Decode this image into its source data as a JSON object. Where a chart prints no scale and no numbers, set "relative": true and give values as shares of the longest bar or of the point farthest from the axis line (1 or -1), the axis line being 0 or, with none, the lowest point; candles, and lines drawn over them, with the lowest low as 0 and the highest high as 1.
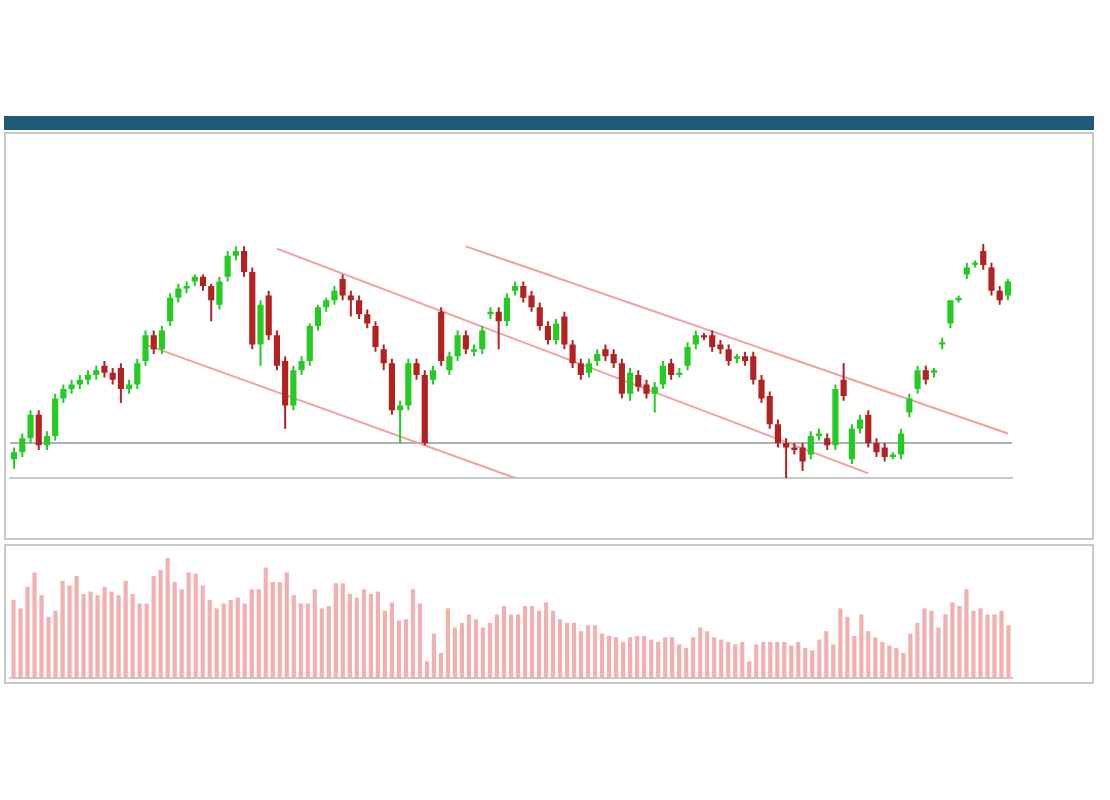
{
  "chart_data": [
    {
      "type": "candlestick",
      "relative": true,
      "grid": false,
      "legend": false,
      "categories": [
        null,
        null,
        null,
        null,
        null,
        null,
        null,
        null,
        null,
        null,
        null,
        null,
        null,
        null,
        null,
        null,
        null,
        null,
        null,
        null,
        null,
        null,
        null,
        null,
        null,
        null,
        null,
        null,
        null,
        null,
        null,
        null,
        null,
        null,
        null,
        null,
        null,
        null,
        null,
        null,
        null,
        null,
        null,
        null,
        null,
        null,
        null,
        null,
        null,
        null,
        null,
        null,
        null,
        null,
        null,
        null,
        null,
        null,
        null,
        null,
        null,
        null,
        null,
        null,
        null,
        null,
        null,
        null,
        null,
        null,
        null,
        null,
        null,
        null,
        null,
        null,
        null,
        null,
        null,
        null,
        null,
        null,
        null,
        null,
        null,
        null,
        null,
        null,
        null,
        null,
        null,
        null,
        null,
        null,
        null,
        null,
        null,
        null,
        null,
        null,
        null,
        null,
        null,
        null,
        null,
        null,
        null,
        null,
        null,
        null,
        null,
        null,
        null,
        null,
        null,
        null,
        null,
        null,
        null,
        null,
        null,
        null
      ],
      "ohlc": [
        [
          0.08,
          0.13,
          0.04,
          0.11
        ],
        [
          0.11,
          0.19,
          0.09,
          0.17
        ],
        [
          0.17,
          0.29,
          0.15,
          0.27
        ],
        [
          0.27,
          0.29,
          0.12,
          0.14
        ],
        [
          0.14,
          0.2,
          0.12,
          0.18
        ],
        [
          0.18,
          0.36,
          0.16,
          0.34
        ],
        [
          0.34,
          0.4,
          0.32,
          0.38
        ],
        [
          0.38,
          0.42,
          0.36,
          0.4
        ],
        [
          0.4,
          0.44,
          0.38,
          0.42
        ],
        [
          0.42,
          0.46,
          0.4,
          0.44
        ],
        [
          0.44,
          0.48,
          0.42,
          0.46
        ],
        [
          0.48,
          0.5,
          0.43,
          0.45
        ],
        [
          0.45,
          0.47,
          0.4,
          0.42
        ],
        [
          0.47,
          0.49,
          0.32,
          0.38
        ],
        [
          0.38,
          0.42,
          0.36,
          0.4
        ],
        [
          0.4,
          0.51,
          0.38,
          0.49
        ],
        [
          0.5,
          0.63,
          0.48,
          0.61
        ],
        [
          0.61,
          0.63,
          0.53,
          0.55
        ],
        [
          0.55,
          0.65,
          0.53,
          0.63
        ],
        [
          0.67,
          0.79,
          0.65,
          0.77
        ],
        [
          0.77,
          0.83,
          0.75,
          0.81
        ],
        [
          0.81,
          0.84,
          0.79,
          0.82
        ],
        [
          0.84,
          0.87,
          0.82,
          0.86
        ],
        [
          0.86,
          0.87,
          0.8,
          0.82
        ],
        [
          0.82,
          0.83,
          0.67,
          0.76
        ],
        [
          0.74,
          0.86,
          0.72,
          0.84
        ],
        [
          0.86,
          0.97,
          0.84,
          0.95
        ],
        [
          0.95,
          0.99,
          0.93,
          0.97
        ],
        [
          0.97,
          0.99,
          0.86,
          0.88
        ],
        [
          0.88,
          0.9,
          0.55,
          0.57
        ],
        [
          0.57,
          0.76,
          0.48,
          0.74
        ],
        [
          0.78,
          0.8,
          0.59,
          0.61
        ],
        [
          0.61,
          0.63,
          0.46,
          0.48
        ],
        [
          0.5,
          0.52,
          0.21,
          0.31
        ],
        [
          0.31,
          0.48,
          0.29,
          0.46
        ],
        [
          0.46,
          0.52,
          0.44,
          0.5
        ],
        [
          0.5,
          0.66,
          0.48,
          0.65
        ],
        [
          0.65,
          0.74,
          0.63,
          0.73
        ],
        [
          0.73,
          0.77,
          0.71,
          0.76
        ],
        [
          0.76,
          0.82,
          0.74,
          0.8
        ],
        [
          0.85,
          0.87,
          0.76,
          0.78
        ],
        [
          0.78,
          0.8,
          0.69,
          0.76
        ],
        [
          0.76,
          0.78,
          0.68,
          0.7
        ],
        [
          0.7,
          0.72,
          0.64,
          0.66
        ],
        [
          0.65,
          0.67,
          0.54,
          0.56
        ],
        [
          0.55,
          0.57,
          0.46,
          0.49
        ],
        [
          0.49,
          0.51,
          0.27,
          0.29
        ],
        [
          0.29,
          0.33,
          0.15,
          0.31
        ],
        [
          0.31,
          0.51,
          0.29,
          0.49
        ],
        [
          0.49,
          0.51,
          0.42,
          0.44
        ],
        [
          0.44,
          0.46,
          0.14,
          0.15
        ],
        [
          0.42,
          0.48,
          0.4,
          0.46
        ],
        [
          0.71,
          0.73,
          0.48,
          0.5
        ],
        [
          0.46,
          0.54,
          0.44,
          0.52
        ],
        [
          0.52,
          0.63,
          0.5,
          0.61
        ],
        [
          0.61,
          0.63,
          0.53,
          0.55
        ],
        [
          0.54,
          0.57,
          0.52,
          0.55
        ],
        [
          0.55,
          0.65,
          0.53,
          0.63
        ],
        [
          0.7,
          0.73,
          0.68,
          0.71
        ],
        [
          0.71,
          0.73,
          0.55,
          0.67
        ],
        [
          0.67,
          0.79,
          0.65,
          0.77
        ],
        [
          0.8,
          0.84,
          0.78,
          0.82
        ],
        [
          0.82,
          0.84,
          0.75,
          0.77
        ],
        [
          0.78,
          0.8,
          0.71,
          0.73
        ],
        [
          0.73,
          0.75,
          0.63,
          0.65
        ],
        [
          0.65,
          0.67,
          0.57,
          0.59
        ],
        [
          0.59,
          0.68,
          0.57,
          0.66
        ],
        [
          0.69,
          0.71,
          0.55,
          0.57
        ],
        [
          0.57,
          0.59,
          0.47,
          0.49
        ],
        [
          0.49,
          0.51,
          0.42,
          0.44
        ],
        [
          0.45,
          0.51,
          0.43,
          0.49
        ],
        [
          0.5,
          0.55,
          0.48,
          0.53
        ],
        [
          0.55,
          0.57,
          0.5,
          0.52
        ],
        [
          0.53,
          0.55,
          0.47,
          0.49
        ],
        [
          0.49,
          0.51,
          0.34,
          0.36
        ],
        [
          0.36,
          0.47,
          0.33,
          0.45
        ],
        [
          0.44,
          0.46,
          0.37,
          0.39
        ],
        [
          0.4,
          0.42,
          0.34,
          0.36
        ],
        [
          0.36,
          0.41,
          0.28,
          0.39
        ],
        [
          0.4,
          0.5,
          0.38,
          0.48
        ],
        [
          0.49,
          0.51,
          0.42,
          0.44
        ],
        [
          0.44,
          0.47,
          0.43,
          0.45
        ],
        [
          0.48,
          0.58,
          0.46,
          0.56
        ],
        [
          0.57,
          0.63,
          0.55,
          0.61
        ],
        [
          0.61,
          0.62,
          0.59,
          0.6
        ],
        [
          0.61,
          0.63,
          0.54,
          0.56
        ],
        [
          0.57,
          0.59,
          0.53,
          0.55
        ],
        [
          0.55,
          0.57,
          0.48,
          0.5
        ],
        [
          0.51,
          0.53,
          0.49,
          0.52
        ],
        [
          0.52,
          0.54,
          0.48,
          0.5
        ],
        [
          0.52,
          0.54,
          0.4,
          0.42
        ],
        [
          0.42,
          0.44,
          0.32,
          0.34
        ],
        [
          0.35,
          0.37,
          0.21,
          0.23
        ],
        [
          0.23,
          0.25,
          0.13,
          0.15
        ],
        [
          0.15,
          0.17,
          0,
          0.13
        ],
        [
          0.13,
          0.15,
          0.1,
          0.12
        ],
        [
          0.13,
          0.15,
          0.03,
          0.07
        ],
        [
          0.1,
          0.2,
          0.08,
          0.18
        ],
        [
          0.18,
          0.21,
          0.16,
          0.19
        ],
        [
          0.17,
          0.19,
          0.12,
          0.14
        ],
        [
          0.14,
          0.4,
          0.12,
          0.38
        ],
        [
          0.42,
          0.49,
          0.33,
          0.35
        ],
        [
          0.08,
          0.23,
          0.06,
          0.21
        ],
        [
          0.21,
          0.27,
          0.19,
          0.25
        ],
        [
          0.27,
          0.29,
          0.13,
          0.15
        ],
        [
          0.15,
          0.17,
          0.09,
          0.11
        ],
        [
          0.13,
          0.15,
          0.07,
          0.09
        ],
        [
          0.09,
          0.11,
          0.08,
          0.1
        ],
        [
          0.1,
          0.21,
          0.08,
          0.19
        ],
        [
          0.28,
          0.36,
          0.26,
          0.34
        ],
        [
          0.38,
          0.48,
          0.36,
          0.46
        ],
        [
          0.46,
          0.48,
          0.4,
          0.42
        ],
        [
          0.45,
          0.47,
          0.43,
          0.46
        ],
        [
          0.57,
          0.6,
          0.55,
          0.58
        ],
        [
          0.66,
          0.76,
          0.64,
          0.76
        ],
        [
          0.76,
          0.78,
          0.75,
          0.77
        ],
        [
          0.87,
          0.92,
          0.85,
          0.9
        ],
        [
          0.92,
          0.93,
          0.9,
          0.92
        ],
        [
          0.97,
          1,
          0.89,
          0.91
        ],
        [
          0.9,
          0.92,
          0.78,
          0.8
        ],
        [
          0.8,
          0.82,
          0.74,
          0.76
        ],
        [
          0.78,
          0.85,
          0.76,
          0.84
        ]
      ],
      "colors": [
        "#22cc22",
        "#22cc22",
        "#22cc22",
        "#b22222",
        "#22cc22",
        "#22cc22",
        "#22cc22",
        "#22cc22",
        "#22cc22",
        "#22cc22",
        "#22cc22",
        "#b22222",
        "#b22222",
        "#b22222",
        "#22cc22",
        "#22cc22",
        "#22cc22",
        "#b22222",
        "#22cc22",
        "#22cc22",
        "#22cc22",
        "#22cc22",
        "#22cc22",
        "#b22222",
        "#b22222",
        "#22cc22",
        "#22cc22",
        "#22cc22",
        "#b22222",
        "#b22222",
        "#22cc22",
        "#b22222",
        "#b22222",
        "#b22222",
        "#22cc22",
        "#22cc22",
        "#22cc22",
        "#22cc22",
        "#22cc22",
        "#22cc22",
        "#b22222",
        "#b22222",
        "#b22222",
        "#b22222",
        "#b22222",
        "#b22222",
        "#b22222",
        "#22cc22",
        "#22cc22",
        "#b22222",
        "#b22222",
        "#22cc22",
        "#b22222",
        "#22cc22",
        "#22cc22",
        "#b22222",
        "#22cc22",
        "#22cc22",
        "#22cc22",
        "#b22222",
        "#22cc22",
        "#22cc22",
        "#b22222",
        "#b22222",
        "#b22222",
        "#b22222",
        "#22cc22",
        "#b22222",
        "#b22222",
        "#b22222",
        "#22cc22",
        "#22cc22",
        "#b22222",
        "#b22222",
        "#b22222",
        "#22cc22",
        "#b22222",
        "#b22222",
        "#22cc22",
        "#22cc22",
        "#b22222",
        "#22cc22",
        "#22cc22",
        "#22cc22",
        "#b22222",
        "#b22222",
        "#b22222",
        "#b22222",
        "#22cc22",
        "#b22222",
        "#b22222",
        "#b22222",
        "#b22222",
        "#b22222",
        "#b22222",
        "#b22222",
        "#b22222",
        "#22cc22",
        "#22cc22",
        "#b22222",
        "#22cc22",
        "#b22222",
        "#22cc22",
        "#22cc22",
        "#b22222",
        "#b22222",
        "#b22222",
        "#22cc22",
        "#22cc22",
        "#22cc22",
        "#22cc22",
        "#b22222",
        "#22cc22",
        "#22cc22",
        "#22cc22",
        "#22cc22",
        "#22cc22",
        "#22cc22",
        "#b22222",
        "#b22222",
        "#b22222",
        "#22cc22"
      ],
      "series": [
        {
          "type": "line",
          "color": "#f4a0a0",
          "values": [
            null,
            null,
            null,
            null,
            null,
            null,
            null,
            null,
            null,
            null,
            null,
            null,
            null,
            null,
            null,
            null,
            null,
            null,
            null,
            null,
            null,
            null,
            null,
            null,
            null,
            null,
            null,
            null,
            null,
            null,
            null,
            null,
            null,
            null,
            null,
            null,
            null,
            null,
            null,
            null,
            null,
            null,
            null,
            null,
            null,
            null,
            null,
            null,
            null,
            null,
            null,
            null,
            null,
            null,
            null,
            0.99,
            null,
            null,
            null,
            null,
            null,
            null,
            null,
            null,
            null,
            null,
            null,
            null,
            null,
            null,
            null,
            null,
            null,
            null,
            null,
            null,
            null,
            null,
            null,
            null,
            null,
            null,
            null,
            null,
            null,
            null,
            null,
            null,
            null,
            null,
            null,
            null,
            null,
            null,
            null,
            null,
            null,
            null,
            null,
            null,
            null,
            null,
            null,
            null,
            null,
            null,
            null,
            null,
            null,
            null,
            null,
            null,
            null,
            null,
            null,
            null,
            null,
            null,
            null,
            null,
            null,
            0.19
          ]
        },
        {
          "type": "line",
          "color": "#f4a0a0",
          "values": [
            null,
            null,
            null,
            null,
            null,
            null,
            null,
            null,
            null,
            null,
            null,
            null,
            null,
            null,
            null,
            null,
            null,
            null,
            null,
            null,
            null,
            null,
            null,
            null,
            null,
            null,
            null,
            null,
            null,
            null,
            null,
            null,
            0.98,
            null,
            null,
            null,
            null,
            null,
            null,
            null,
            null,
            null,
            null,
            null,
            null,
            null,
            null,
            null,
            null,
            null,
            null,
            null,
            null,
            null,
            null,
            null,
            null,
            null,
            null,
            null,
            null,
            null,
            null,
            null,
            null,
            null,
            null,
            null,
            null,
            null,
            null,
            null,
            null,
            null,
            null,
            null,
            null,
            null,
            null,
            null,
            null,
            null,
            null,
            null,
            null,
            null,
            null,
            null,
            null,
            null,
            null,
            null,
            null,
            null,
            null,
            null,
            null,
            null,
            null,
            null,
            null,
            null,
            null,
            null,
            0.02,
            null,
            null,
            null,
            null,
            null,
            null,
            null,
            null,
            null,
            null,
            null,
            null,
            null,
            null,
            null,
            null,
            null
          ]
        },
        {
          "type": "line",
          "color": "#f4a0a0",
          "values": [
            null,
            null,
            null,
            null,
            null,
            null,
            null,
            null,
            null,
            null,
            null,
            null,
            null,
            null,
            null,
            null,
            0.57,
            null,
            null,
            null,
            null,
            null,
            null,
            null,
            null,
            null,
            null,
            null,
            null,
            null,
            null,
            null,
            null,
            null,
            null,
            null,
            null,
            null,
            null,
            null,
            null,
            null,
            null,
            null,
            null,
            null,
            null,
            null,
            null,
            null,
            null,
            null,
            null,
            null,
            null,
            null,
            null,
            null,
            null,
            null,
            null,
            0,
            null,
            null,
            null,
            null,
            null,
            null,
            null,
            null,
            null,
            null,
            null,
            null,
            null,
            null,
            null,
            null,
            null,
            null,
            null,
            null,
            null,
            null,
            null,
            null,
            null,
            null,
            null,
            null,
            null,
            null,
            null,
            null,
            null,
            null,
            null,
            null,
            null,
            null,
            null,
            null,
            null,
            null,
            null,
            null,
            null,
            null,
            null,
            null,
            null,
            null,
            null,
            null,
            null,
            null,
            null,
            null,
            null,
            null,
            null,
            null
          ]
        }
      ],
      "ref_lines": [
        {
          "axis": "y",
          "value": 0.15,
          "color": "#b0b0b0"
        }
      ]
    },
    {
      "type": "bar",
      "relative": true,
      "grid": false,
      "legend": false,
      "color": "#f2b0b0",
      "categories": [
        null,
        null,
        null,
        null,
        null,
        null,
        null,
        null,
        null,
        null,
        null,
        null,
        null,
        null,
        null,
        null,
        null,
        null,
        null,
        null,
        null,
        null,
        null,
        null,
        null,
        null,
        null,
        null,
        null,
        null,
        null,
        null,
        null,
        null,
        null,
        null,
        null,
        null,
        null,
        null,
        null,
        null,
        null,
        null,
        null,
        null,
        null,
        null,
        null,
        null,
        null,
        null,
        null,
        null,
        null,
        null,
        null,
        null,
        null,
        null,
        null,
        null,
        null,
        null,
        null,
        null,
        null,
        null,
        null,
        null,
        null,
        null,
        null,
        null,
        null,
        null,
        null,
        null,
        null,
        null,
        null,
        null,
        null,
        null,
        null,
        null,
        null,
        null,
        null,
        null,
        null,
        null,
        null,
        null,
        null,
        null,
        null,
        null,
        null,
        null,
        null,
        null,
        null,
        null,
        null,
        null,
        null,
        null,
        null,
        null,
        null,
        null,
        null,
        null,
        null,
        null,
        null,
        null,
        null,
        null,
        null,
        null,
        null,
        null,
        null,
        null,
        null,
        null,
        null,
        null,
        null,
        null,
        null,
        null,
        null,
        null,
        null,
        null,
        null,
        null,
        null,
        null,
        null
      ],
      "values": [
        0.65,
        0.58,
        0.76,
        0.88,
        0.69,
        0.51,
        0.56,
        0.81,
        0.77,
        0.85,
        0.7,
        0.72,
        0.69,
        0.76,
        0.72,
        0.69,
        0.81,
        0.7,
        0.62,
        0.62,
        0.85,
        0.9,
        1,
        0.8,
        0.74,
        0.88,
        0.87,
        0.77,
        0.65,
        0.58,
        0.62,
        0.65,
        0.67,
        0.62,
        0.74,
        0.74,
        0.92,
        0.8,
        0.8,
        0.88,
        0.69,
        0.62,
        0.62,
        0.74,
        0.58,
        0.6,
        0.79,
        0.79,
        0.7,
        0.67,
        0.74,
        0.7,
        0.72,
        0.56,
        0.63,
        0.48,
        0.49,
        0.74,
        0.62,
        0.14,
        0.37,
        0.21,
        0.58,
        0.42,
        0.46,
        0.53,
        0.49,
        0.42,
        0.46,
        0.53,
        0.6,
        0.53,
        0.53,
        0.6,
        0.6,
        0.56,
        0.63,
        0.56,
        0.49,
        0.46,
        0.46,
        0.39,
        0.44,
        0.44,
        0.37,
        0.35,
        0.34,
        0.3,
        0.34,
        0.35,
        0.35,
        0.32,
        0.3,
        0.34,
        0.34,
        0.28,
        0.25,
        0.34,
        0.42,
        0.39,
        0.34,
        0.32,
        0.3,
        0.28,
        0.3,
        0.14,
        0.28,
        0.3,
        0.3,
        0.3,
        0.3,
        0.27,
        0.3,
        0.25,
        0.23,
        0.32,
        0.39,
        0.28,
        0.58,
        0.51,
        0.35,
        0.53,
        0.39,
        0.34,
        0.3,
        0.27,
        0.25,
        0.21,
        0.37,
        0.46,
        0.58,
        0.56,
        0.42,
        0.53,
        0.63,
        0.6,
        0.74,
        0.56,
        0.58,
        0.53,
        0.53,
        0.56,
        0.44
      ]
    }
  ]
}
